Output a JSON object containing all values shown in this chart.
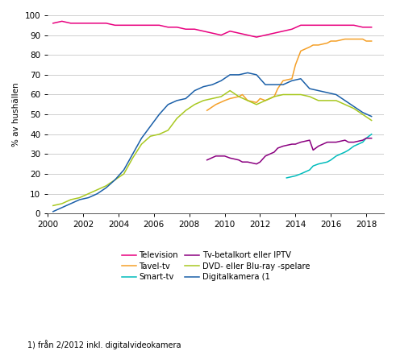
{
  "title": "",
  "ylabel": "% av hushällen",
  "xlabel": "",
  "footnote": "1) från 2/2012 inkl. digitalvideokamera",
  "legend_entries": [
    {
      "label": "Television",
      "color": "#e8007f"
    },
    {
      "label": "Tavel-tv",
      "color": "#f5a028"
    },
    {
      "label": "Smart-tv",
      "color": "#00bcbc"
    },
    {
      "label": "Tv-betalkort eller IPTV",
      "color": "#8b0080"
    },
    {
      "label": "DVD- eller Blu-ray -spelare",
      "color": "#a8c820"
    },
    {
      "label": "Digitalkamera (1",
      "color": "#1a5fa8"
    }
  ],
  "xlim": [
    2000,
    2019
  ],
  "ylim": [
    0,
    100
  ],
  "xticks": [
    2000,
    2002,
    2004,
    2006,
    2008,
    2010,
    2012,
    2014,
    2016,
    2018
  ],
  "yticks": [
    0,
    10,
    20,
    30,
    40,
    50,
    60,
    70,
    80,
    90,
    100
  ],
  "series": {
    "Television": {
      "x": [
        2000.3,
        2000.8,
        2001.3,
        2001.8,
        2002.3,
        2002.8,
        2003.3,
        2003.8,
        2004.3,
        2004.8,
        2005.3,
        2005.8,
        2006.3,
        2006.8,
        2007.3,
        2007.8,
        2008.3,
        2008.8,
        2009.3,
        2009.8,
        2010.3,
        2010.8,
        2011.3,
        2011.8,
        2012.3,
        2012.8,
        2013.3,
        2013.8,
        2014.3,
        2014.8,
        2015.3,
        2015.8,
        2016.3,
        2016.8,
        2017.3,
        2017.8,
        2018.3
      ],
      "y": [
        96,
        97,
        96,
        96,
        96,
        96,
        96,
        95,
        95,
        95,
        95,
        95,
        95,
        94,
        94,
        93,
        93,
        92,
        91,
        90,
        92,
        91,
        90,
        89,
        90,
        91,
        92,
        93,
        95,
        95,
        95,
        95,
        95,
        95,
        95,
        94,
        94
      ]
    },
    "Taveltv": {
      "x": [
        2009.0,
        2009.5,
        2010.0,
        2010.3,
        2010.8,
        2011.0,
        2011.3,
        2011.8,
        2012.0,
        2012.3,
        2012.8,
        2013.0,
        2013.3,
        2013.8,
        2014.0,
        2014.3,
        2014.8,
        2015.0,
        2015.3,
        2015.8,
        2016.0,
        2016.3,
        2016.8,
        2017.0,
        2017.3,
        2017.8,
        2018.0,
        2018.3
      ],
      "y": [
        52,
        55,
        57,
        58,
        59,
        60,
        57,
        56,
        58,
        57,
        59,
        63,
        67,
        68,
        75,
        82,
        84,
        85,
        85,
        86,
        87,
        87,
        88,
        88,
        88,
        88,
        87,
        87
      ]
    },
    "Smarttv": {
      "x": [
        2013.5,
        2014.0,
        2014.3,
        2014.8,
        2015.0,
        2015.3,
        2015.8,
        2016.0,
        2016.3,
        2016.8,
        2017.0,
        2017.3,
        2017.8,
        2018.0,
        2018.3
      ],
      "y": [
        18,
        19,
        20,
        22,
        24,
        25,
        26,
        27,
        29,
        31,
        32,
        34,
        36,
        38,
        40
      ]
    },
    "TvbetalkortIPTV": {
      "x": [
        2009.0,
        2009.5,
        2010.0,
        2010.3,
        2010.8,
        2011.0,
        2011.3,
        2011.8,
        2012.0,
        2012.3,
        2012.8,
        2013.0,
        2013.3,
        2013.8,
        2014.0,
        2014.3,
        2014.8,
        2015.0,
        2015.3,
        2015.8,
        2016.0,
        2016.3,
        2016.8,
        2017.0,
        2017.3,
        2017.8,
        2018.0,
        2018.3
      ],
      "y": [
        27,
        29,
        29,
        28,
        27,
        26,
        26,
        25,
        26,
        29,
        31,
        33,
        34,
        35,
        35,
        36,
        37,
        32,
        34,
        36,
        36,
        36,
        37,
        36,
        36,
        37,
        38,
        38
      ]
    },
    "DVDBluray": {
      "x": [
        2000.3,
        2000.8,
        2001.3,
        2001.8,
        2002.3,
        2002.8,
        2003.3,
        2003.8,
        2004.3,
        2004.8,
        2005.3,
        2005.8,
        2006.3,
        2006.8,
        2007.3,
        2007.8,
        2008.3,
        2008.8,
        2009.3,
        2009.8,
        2010.3,
        2010.8,
        2011.3,
        2011.8,
        2012.3,
        2012.8,
        2013.3,
        2013.8,
        2014.3,
        2014.8,
        2015.3,
        2015.8,
        2016.3,
        2016.8,
        2017.3,
        2017.8,
        2018.3
      ],
      "y": [
        4,
        5,
        7,
        8,
        10,
        12,
        14,
        17,
        20,
        28,
        35,
        39,
        40,
        42,
        48,
        52,
        55,
        57,
        58,
        59,
        62,
        59,
        57,
        55,
        57,
        59,
        60,
        60,
        60,
        59,
        57,
        57,
        57,
        55,
        53,
        50,
        47
      ]
    },
    "Digitalkamera": {
      "x": [
        2000.3,
        2000.8,
        2001.3,
        2001.8,
        2002.3,
        2002.8,
        2003.3,
        2003.8,
        2004.3,
        2004.8,
        2005.3,
        2005.8,
        2006.3,
        2006.8,
        2007.3,
        2007.8,
        2008.3,
        2008.8,
        2009.3,
        2009.8,
        2010.3,
        2010.8,
        2011.3,
        2011.8,
        2012.3,
        2012.8,
        2013.3,
        2013.8,
        2014.3,
        2014.8,
        2015.3,
        2015.8,
        2016.3,
        2016.8,
        2017.3,
        2017.8,
        2018.3
      ],
      "y": [
        1,
        3,
        5,
        7,
        8,
        10,
        13,
        17,
        22,
        30,
        38,
        44,
        50,
        55,
        57,
        58,
        62,
        64,
        65,
        67,
        70,
        70,
        71,
        70,
        65,
        65,
        65,
        67,
        68,
        63,
        62,
        61,
        60,
        57,
        54,
        51,
        49
      ]
    }
  },
  "background_color": "#ffffff",
  "grid_color": "#c8c8c8"
}
